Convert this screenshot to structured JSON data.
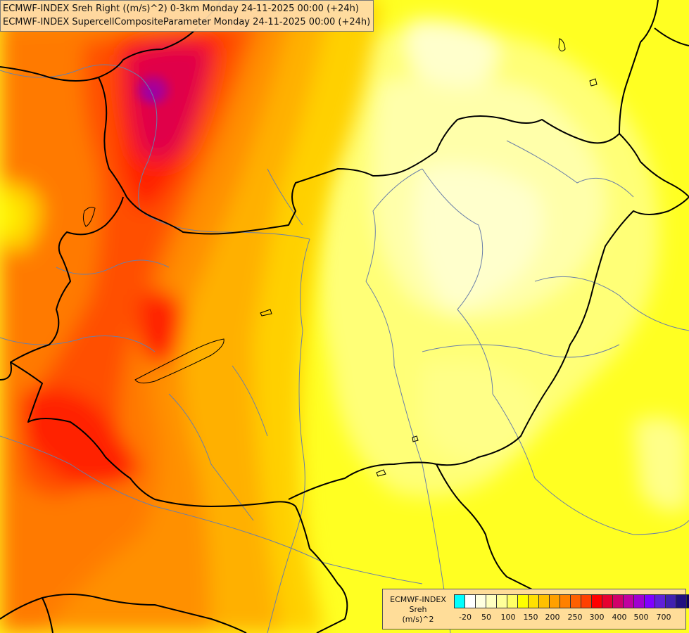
{
  "title": {
    "line1": "ECMWF-INDEX Sreh Right ((m/s)^2) 0-3km Monday 24-11-2025 00:00 (+24h)",
    "line2": "ECMWF-INDEX SupercellCompositeParameter Monday 24-11-2025 00:00 (+24h)"
  },
  "legend": {
    "source": "ECMWF-INDEX",
    "variable": "Sreh",
    "unit": "(m/s)^2",
    "colors": [
      "#00ffff",
      "#ffffff",
      "#ffffe0",
      "#ffffc0",
      "#ffff99",
      "#ffff66",
      "#ffff00",
      "#ffe000",
      "#ffc000",
      "#ffa000",
      "#ff8000",
      "#ff6000",
      "#ff4000",
      "#ff0000",
      "#e60030",
      "#d0006a",
      "#c000a0",
      "#a000d0",
      "#8000ff",
      "#6020d8",
      "#4020b0",
      "#201080",
      "#0a0060"
    ],
    "ticks": [
      "-20",
      "50",
      "100",
      "150",
      "200",
      "250",
      "300",
      "400",
      "500",
      "700"
    ]
  },
  "colors": {
    "border_country": "#000000",
    "river": "#6a7fa8"
  }
}
